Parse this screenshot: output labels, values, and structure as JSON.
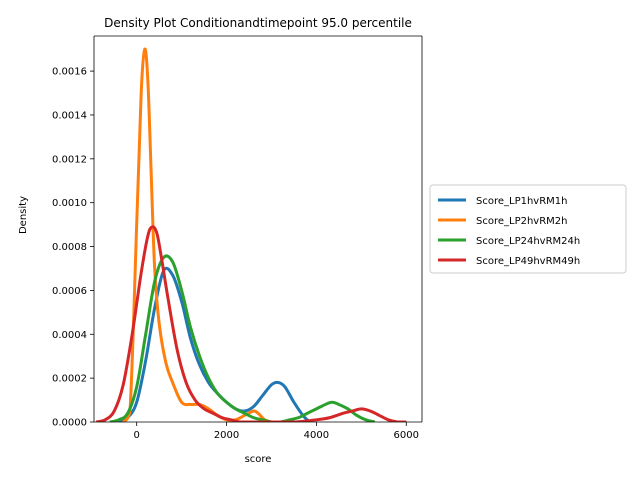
{
  "chart_data": {
    "type": "line",
    "title": "Density Plot Conditionandtimepoint 95.0 percentile",
    "xlabel": "score",
    "ylabel": "Density",
    "xlim": [
      -950,
      6350
    ],
    "ylim": [
      0,
      0.00176
    ],
    "xticks": [
      0,
      2000,
      4000,
      6000
    ],
    "xtick_labels": [
      "0",
      "2000",
      "4000",
      "6000"
    ],
    "yticks": [
      0,
      0.0002,
      0.0004,
      0.0006,
      0.0008,
      0.001,
      0.0012,
      0.0014,
      0.0016
    ],
    "ytick_labels": [
      "0.0000",
      "0.0002",
      "0.0004",
      "0.0006",
      "0.0008",
      "0.0010",
      "0.0012",
      "0.0014",
      "0.0016"
    ],
    "grid": false,
    "legend_position": "right, outside plot",
    "series": [
      {
        "name": "Score_LP1hvRM1h",
        "color": "#1f77b4",
        "x": [
          -400,
          -200,
          0,
          200,
          400,
          600,
          800,
          1000,
          1200,
          1400,
          1600,
          1800,
          2000,
          2200,
          2400,
          2600,
          2800,
          3000,
          3150,
          3300,
          3500,
          3700,
          3850
        ],
        "y": [
          0.0,
          2e-05,
          9e-05,
          0.00028,
          0.00052,
          0.00069,
          0.00067,
          0.00055,
          0.00038,
          0.00026,
          0.00018,
          0.00013,
          9e-05,
          6e-05,
          5e-05,
          7e-05,
          0.00012,
          0.00017,
          0.00018,
          0.00016,
          9e-05,
          3e-05,
          0.0
        ]
      },
      {
        "name": "Score_LP2hvRM2h",
        "color": "#ff7f0e",
        "x": [
          -300,
          -150,
          0,
          100,
          180,
          250,
          320,
          400,
          500,
          650,
          800,
          1000,
          1200,
          1400,
          1600,
          1800,
          2000,
          2200,
          2400,
          2600,
          2700,
          2850,
          3000
        ],
        "y": [
          0.0,
          5e-05,
          0.0009,
          0.0015,
          0.0017,
          0.00155,
          0.00115,
          0.0007,
          0.00045,
          0.00027,
          0.00018,
          9e-05,
          8e-05,
          8e-05,
          6e-05,
          3e-05,
          1e-05,
          1e-05,
          3e-05,
          5e-05,
          4e-05,
          1e-05,
          0.0
        ]
      },
      {
        "name": "Score_LP24hvRM24h",
        "color": "#2ca02c",
        "x": [
          -600,
          -400,
          -200,
          0,
          200,
          400,
          600,
          800,
          1000,
          1200,
          1400,
          1600,
          1800,
          2000,
          2200,
          2400,
          2600,
          2800,
          3000,
          3200,
          3400,
          3600,
          3800,
          4000,
          4200,
          4350,
          4500,
          4700,
          4900,
          5100,
          5300
        ],
        "y": [
          0.0,
          1e-05,
          4e-05,
          0.00016,
          0.0004,
          0.00064,
          0.00075,
          0.00073,
          0.0006,
          0.00043,
          0.0003,
          0.0002,
          0.00013,
          9e-05,
          6e-05,
          4e-05,
          2e-05,
          1e-05,
          0.0,
          0.0,
          1e-05,
          2e-05,
          4e-05,
          6e-05,
          8e-05,
          9e-05,
          8e-05,
          6e-05,
          3e-05,
          1e-05,
          0.0
        ]
      },
      {
        "name": "Score_LP49hvRM49h",
        "color": "#d62728",
        "x": [
          -900,
          -700,
          -500,
          -300,
          -100,
          100,
          250,
          350,
          450,
          550,
          700,
          900,
          1100,
          1300,
          1500,
          1700,
          1900,
          2100,
          2300,
          2600,
          3000,
          3500,
          4000,
          4300,
          4600,
          4800,
          5000,
          5200,
          5400,
          5600,
          5800,
          6000
        ],
        "y": [
          0.0,
          1e-05,
          5e-05,
          0.00017,
          0.0004,
          0.00068,
          0.00085,
          0.00089,
          0.00086,
          0.00075,
          0.00056,
          0.00033,
          0.00018,
          0.0001,
          6e-05,
          4e-05,
          2e-05,
          1e-05,
          0.0,
          0.0,
          0.0,
          0.0,
          1e-05,
          2e-05,
          4e-05,
          5e-05,
          6e-05,
          5e-05,
          3e-05,
          1e-05,
          0.0,
          0.0
        ]
      }
    ]
  }
}
